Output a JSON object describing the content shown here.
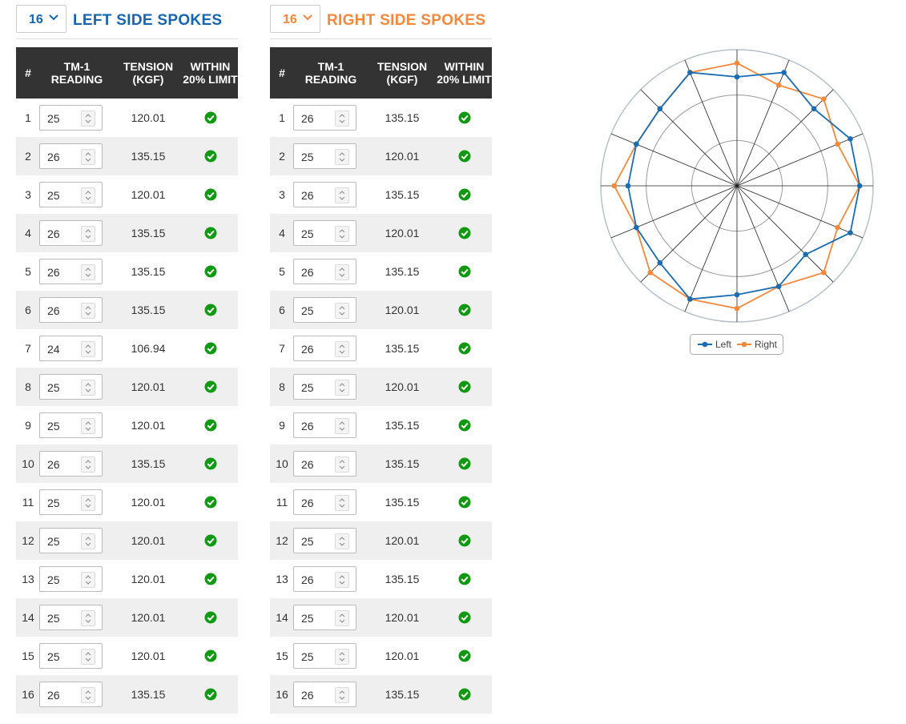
{
  "left": {
    "select": 16,
    "title": "LEFT SIDE SPOKES",
    "headers": [
      "#",
      "TM-1 READING",
      "TENSION (KGF)",
      "WITHIN 20% LIMIT"
    ],
    "rows": [
      [
        1,
        25,
        120.01
      ],
      [
        2,
        26,
        135.15
      ],
      [
        3,
        25,
        120.01
      ],
      [
        4,
        26,
        135.15
      ],
      [
        5,
        26,
        135.15
      ],
      [
        6,
        26,
        135.15
      ],
      [
        7,
        24,
        106.94
      ],
      [
        8,
        25,
        120.01
      ],
      [
        9,
        25,
        120.01
      ],
      [
        10,
        26,
        135.15
      ],
      [
        11,
        25,
        120.01
      ],
      [
        12,
        25,
        120.01
      ],
      [
        13,
        25,
        120.01
      ],
      [
        14,
        25,
        120.01
      ],
      [
        15,
        25,
        120.01
      ],
      [
        16,
        26,
        135.15
      ]
    ]
  },
  "right": {
    "select": 16,
    "title": "RIGHT SIDE SPOKES",
    "headers": [
      "#",
      "TM-1 READING",
      "TENSION (KGF)",
      "WITHIN 20% LIMIT"
    ],
    "rows": [
      [
        1,
        26,
        135.15
      ],
      [
        2,
        25,
        120.01
      ],
      [
        3,
        26,
        135.15
      ],
      [
        4,
        25,
        120.01
      ],
      [
        5,
        26,
        135.15
      ],
      [
        6,
        25,
        120.01
      ],
      [
        7,
        26,
        135.15
      ],
      [
        8,
        25,
        120.01
      ],
      [
        9,
        26,
        135.15
      ],
      [
        10,
        26,
        135.15
      ],
      [
        11,
        26,
        135.15
      ],
      [
        12,
        25,
        120.01
      ],
      [
        13,
        26,
        135.15
      ],
      [
        14,
        25,
        120.01
      ],
      [
        15,
        25,
        120.01
      ],
      [
        16,
        26,
        135.15
      ]
    ]
  },
  "chart_data": {
    "type": "radar",
    "rlim": [
      0,
      150
    ],
    "rticks": [
      50,
      100,
      150
    ],
    "series": [
      {
        "name": "Left",
        "color": "#1a6db3",
        "values": [
          120.01,
          135.15,
          120.01,
          135.15,
          135.15,
          135.15,
          106.94,
          120.01,
          120.01,
          135.15,
          120.01,
          120.01,
          120.01,
          120.01,
          120.01,
          135.15
        ]
      },
      {
        "name": "Right",
        "color": "#f5883a",
        "values": [
          135.15,
          120.01,
          135.15,
          120.01,
          135.15,
          120.01,
          135.15,
          120.01,
          135.15,
          135.15,
          135.15,
          120.01,
          135.15,
          120.01,
          120.01,
          135.15
        ]
      }
    ]
  }
}
